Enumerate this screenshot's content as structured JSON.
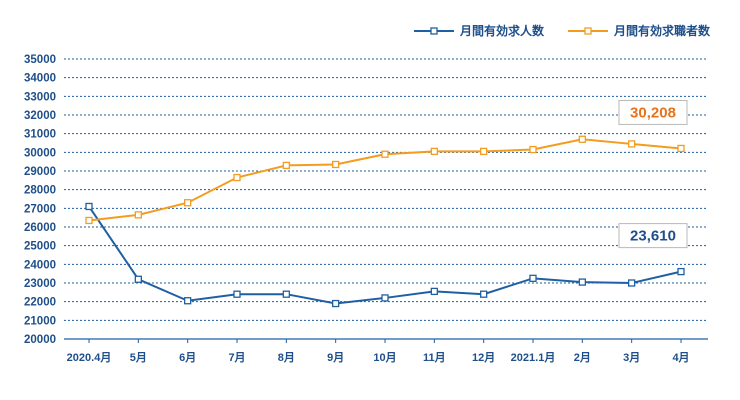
{
  "chart_data": {
    "type": "line",
    "categories": [
      "2020.4月",
      "5月",
      "6月",
      "7月",
      "8月",
      "9月",
      "10月",
      "11月",
      "12月",
      "2021.1月",
      "2月",
      "3月",
      "4月"
    ],
    "series": [
      {
        "name": "月間有効求人数",
        "color": "#1f5fa3",
        "values": [
          27100,
          23200,
          22050,
          22400,
          22400,
          21900,
          22200,
          22550,
          22400,
          23250,
          23050,
          23000,
          23610
        ]
      },
      {
        "name": "月間有効求職者数",
        "color": "#f39c1f",
        "values": [
          26350,
          26650,
          27300,
          28650,
          29300,
          29350,
          29900,
          30050,
          30050,
          30150,
          30700,
          30450,
          30208
        ]
      }
    ],
    "ylim": [
      20000,
      35000
    ],
    "yticks": [
      20000,
      21000,
      22000,
      23000,
      24000,
      25000,
      26000,
      27000,
      28000,
      29000,
      30000,
      31000,
      32000,
      33000,
      34000,
      35000
    ],
    "grid": true,
    "legend_position": "top-right",
    "callouts": [
      {
        "series": 1,
        "label": "30,208",
        "color": "#e8731a"
      },
      {
        "series": 0,
        "label": "23,610",
        "color": "#1f4f8a"
      }
    ]
  }
}
